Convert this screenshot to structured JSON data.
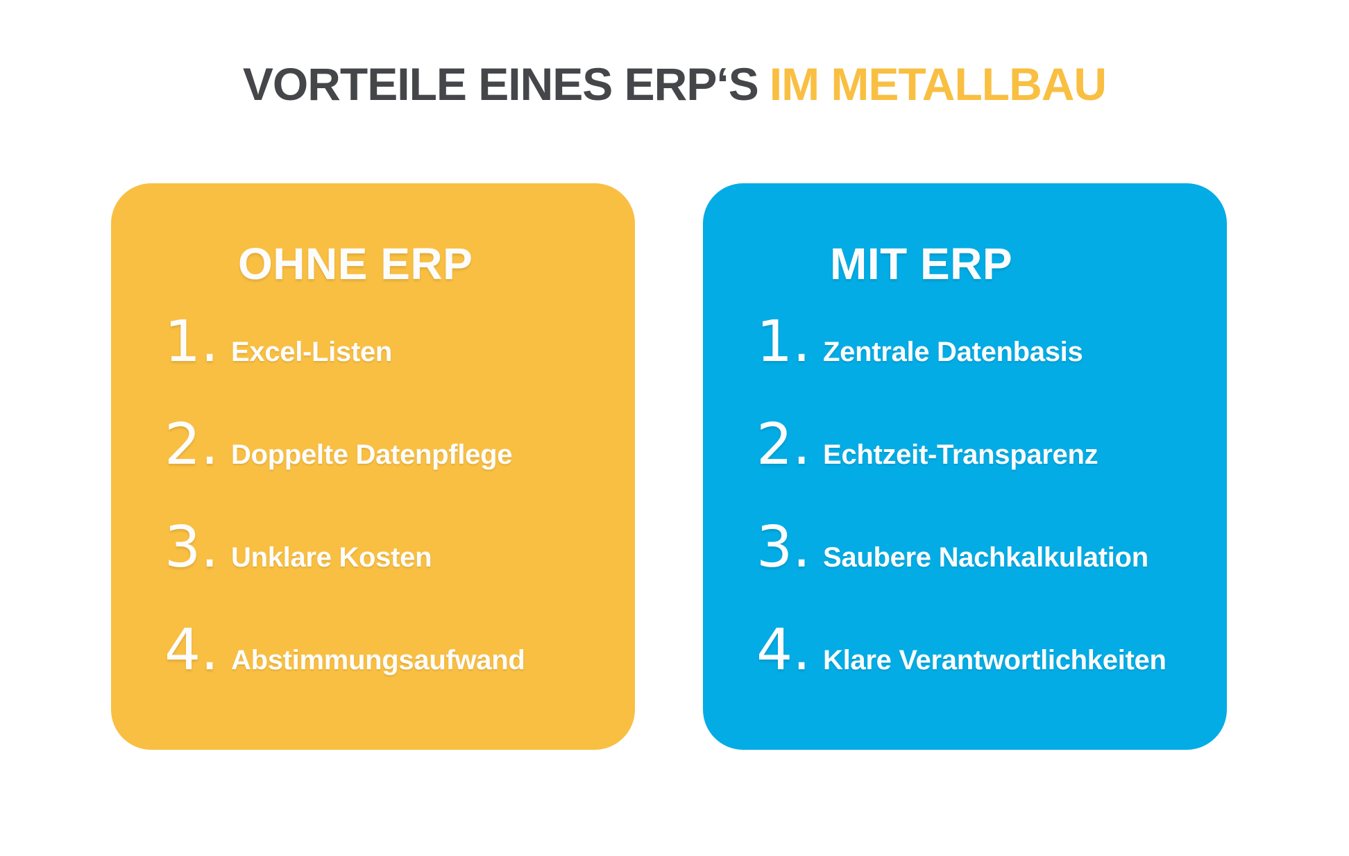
{
  "page": {
    "title_main": "VORTEILE EINES ERP‘S",
    "title_highlight": "IM METALLBAU"
  },
  "colors": {
    "yellow": "#F9BF42",
    "blue": "#03ACE5",
    "title_dark": "#45464A",
    "card_text": "#FCFCFC",
    "background": "#FFFFFF"
  },
  "cards": {
    "without_erp": {
      "heading": "OHNE ERP",
      "items": [
        {
          "number": "1.",
          "label": "Excel-Listen"
        },
        {
          "number": "2.",
          "label": "Doppelte Datenpflege"
        },
        {
          "number": "3.",
          "label": "Unklare Kosten"
        },
        {
          "number": "4.",
          "label": "Abstimmungsaufwand"
        }
      ]
    },
    "with_erp": {
      "heading": "MIT ERP",
      "items": [
        {
          "number": "1.",
          "label": "Zentrale Datenbasis"
        },
        {
          "number": "2.",
          "label": "Echtzeit-Transparenz"
        },
        {
          "number": "3.",
          "label": "Saubere Nachkalkulation"
        },
        {
          "number": "4.",
          "label": "Klare Verantwortlichkeiten"
        }
      ]
    }
  }
}
